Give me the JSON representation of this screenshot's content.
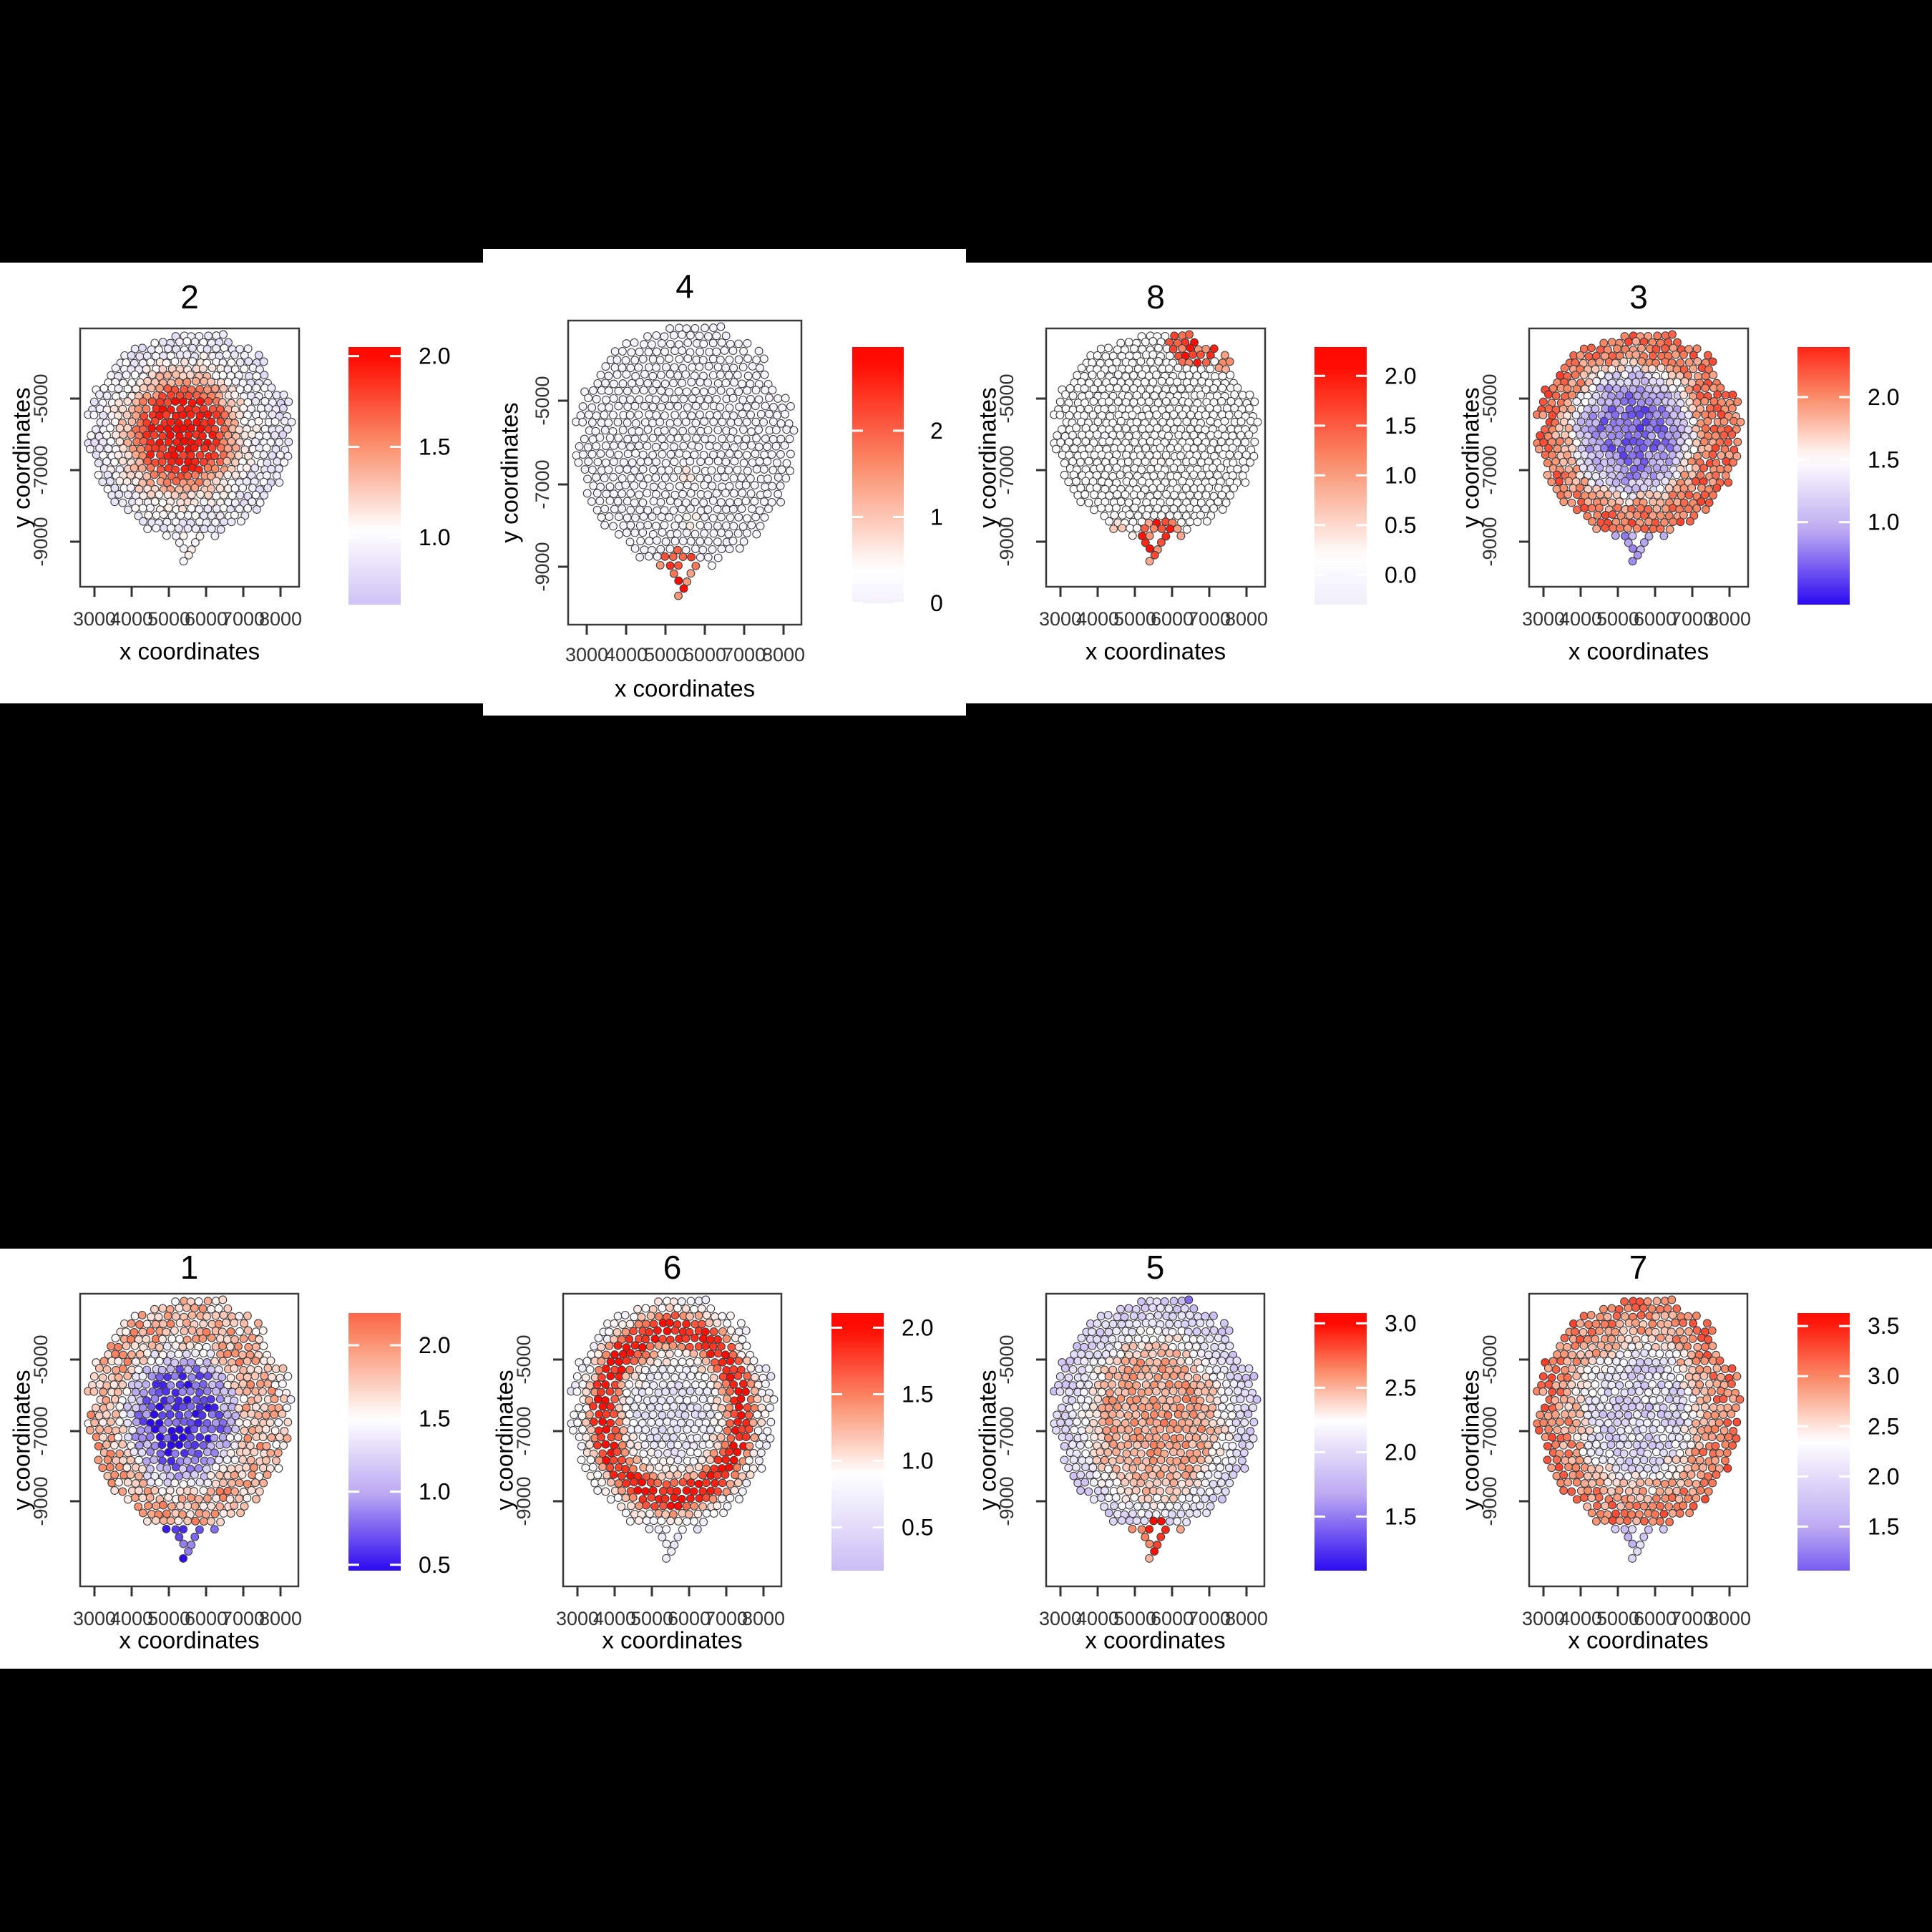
{
  "figure": {
    "background": "#000000",
    "panel_background": "#ffffff",
    "high_color": "#ff0a00",
    "mid_color": "#ffffff",
    "low_color": "#2d0af0",
    "spot_outline": "#3f3f3f",
    "axis_color": "#333333",
    "panels_order": [
      [
        "2",
        "4",
        "8",
        "3"
      ],
      [
        "1",
        "6",
        "5",
        "7"
      ]
    ]
  },
  "chart_data": [
    {
      "type": "scatter",
      "title": "2",
      "xlabel": "x coordinates",
      "ylabel": "y coordinates",
      "x_ticks": [
        3000,
        4000,
        5000,
        6000,
        7000,
        8000
      ],
      "x_tick_labels": [
        "3000",
        "4000",
        "5000",
        "6000",
        "7000",
        "8000"
      ],
      "y_ticks": [
        -5000,
        -7000,
        -9000
      ],
      "y_tick_labels": [
        "-5000",
        "-7000",
        "-9000"
      ],
      "xlim": [
        2600,
        8500
      ],
      "ylim": [
        -10400,
        -3100
      ],
      "grid": false,
      "legend_position": "right",
      "variant": "top",
      "col": 0,
      "seed": 101,
      "legend": {
        "labels": [
          "2.0",
          "1.5",
          "1.0"
        ],
        "values": [
          2.0,
          1.5,
          1.0
        ],
        "domain_top": 2.05,
        "domain_bottom": 0.63,
        "white_point": 1.04,
        "sat_hi": 2.0,
        "sat_lo": -0.13
      },
      "pattern": {
        "center": [
          0.46,
          0.47
        ],
        "profile": [
          [
            0,
            1.95
          ],
          [
            0.33,
            1.9
          ],
          [
            0.52,
            1.35
          ],
          [
            0.72,
            1.0
          ],
          [
            1,
            0.88
          ]
        ],
        "noise": 0.13,
        "tail_value": 1.0,
        "patches": []
      }
    },
    {
      "type": "scatter",
      "title": "4",
      "xlabel": "x coordinates",
      "ylabel": "y coordinates",
      "x_ticks": [
        3000,
        4000,
        5000,
        6000,
        7000,
        8000
      ],
      "x_tick_labels": [
        "3000",
        "4000",
        "5000",
        "6000",
        "7000",
        "8000"
      ],
      "y_ticks": [
        -5000,
        -7000,
        -9000
      ],
      "y_tick_labels": [
        "-5000",
        "-7000",
        "-9000"
      ],
      "xlim": [
        2600,
        8500
      ],
      "ylim": [
        -10400,
        -3100
      ],
      "grid": false,
      "legend_position": "right",
      "variant": "topTall",
      "col": 1,
      "seed": 202,
      "legend": {
        "labels": [
          "2",
          "1",
          "0"
        ],
        "values": [
          2,
          1,
          0
        ],
        "domain_top": 2.97,
        "domain_bottom": 0.0,
        "white_point": 0.4,
        "sat_hi": 2.8,
        "sat_lo": -4.6
      },
      "pattern": {
        "center": [
          0.5,
          0.5
        ],
        "profile": [
          [
            0,
            0.16
          ],
          [
            1,
            0.12
          ]
        ],
        "noise": 0.09,
        "tail_value": 0.3,
        "patches": [
          {
            "cx": 0.48,
            "cy": 0.985,
            "r": 0.1,
            "value": 2.1,
            "spread": 1.5
          },
          {
            "cx": 0.5,
            "cy": 0.6,
            "r": 0.035,
            "value": 0.85,
            "spread": 0.5
          },
          {
            "cx": 0.54,
            "cy": 0.78,
            "r": 0.045,
            "value": 0.5,
            "spread": 0.4
          }
        ]
      }
    },
    {
      "type": "scatter",
      "title": "8",
      "xlabel": "x coordinates",
      "ylabel": "y coordinates",
      "x_ticks": [
        3000,
        4000,
        5000,
        6000,
        7000,
        8000
      ],
      "x_tick_labels": [
        "3000",
        "4000",
        "5000",
        "6000",
        "7000",
        "8000"
      ],
      "y_ticks": [
        -5000,
        -7000,
        -9000
      ],
      "y_tick_labels": [
        "-5000",
        "-7000",
        "-9000"
      ],
      "xlim": [
        2600,
        8500
      ],
      "ylim": [
        -10400,
        -3100
      ],
      "grid": false,
      "legend_position": "right",
      "variant": "top",
      "col": 2,
      "seed": 303,
      "legend": {
        "labels": [
          "2.0",
          "1.5",
          "1.0",
          "0.5",
          "0.0"
        ],
        "values": [
          2.0,
          1.5,
          1.0,
          0.5,
          0.0
        ],
        "domain_top": 2.29,
        "domain_bottom": -0.3,
        "white_point": 0.18,
        "sat_hi": 2.1,
        "sat_lo": -4.6
      },
      "pattern": {
        "center": [
          0.5,
          0.5
        ],
        "profile": [
          [
            0,
            0.14
          ],
          [
            1,
            0.11
          ]
        ],
        "noise": 0.08,
        "tail_value": 0.25,
        "patches": [
          {
            "cx": 0.68,
            "cy": 0.02,
            "r": 0.13,
            "value": 1.5,
            "spread": 1.3
          },
          {
            "cx": 0.84,
            "cy": 0.13,
            "r": 0.05,
            "value": 0.8,
            "spread": 0.7
          },
          {
            "cx": 0.53,
            "cy": 0.98,
            "r": 0.12,
            "value": 1.5,
            "spread": 1.2
          },
          {
            "cx": 0.32,
            "cy": 0.93,
            "r": 0.05,
            "value": 0.55,
            "spread": 0.5
          }
        ]
      }
    },
    {
      "type": "scatter",
      "title": "3",
      "xlabel": "x coordinates",
      "ylabel": "y coordinates",
      "x_ticks": [
        3000,
        4000,
        5000,
        6000,
        7000,
        8000
      ],
      "x_tick_labels": [
        "3000",
        "4000",
        "5000",
        "6000",
        "7000",
        "8000"
      ],
      "y_ticks": [
        -5000,
        -7000,
        -9000
      ],
      "y_tick_labels": [
        "-5000",
        "-7000",
        "-9000"
      ],
      "xlim": [
        2600,
        8500
      ],
      "ylim": [
        -10400,
        -3100
      ],
      "grid": false,
      "legend_position": "right",
      "variant": "top",
      "col": 3,
      "seed": 404,
      "legend": {
        "labels": [
          "2.0",
          "1.5",
          "1.0"
        ],
        "values": [
          2.0,
          1.5,
          1.0
        ],
        "domain_top": 2.4,
        "domain_bottom": 0.34,
        "white_point": 1.5,
        "sat_hi": 2.5,
        "sat_lo": 0.34
      },
      "pattern": {
        "center": [
          0.47,
          0.46
        ],
        "profile": [
          [
            0,
            0.65
          ],
          [
            0.3,
            0.75
          ],
          [
            0.5,
            1.1
          ],
          [
            0.68,
            1.9
          ],
          [
            0.85,
            2.1
          ],
          [
            1,
            2.05
          ]
        ],
        "noise": 0.22,
        "tail_value": 0.95,
        "patches": []
      }
    },
    {
      "type": "scatter",
      "title": "1",
      "xlabel": "x coordinates",
      "ylabel": "y coordinates",
      "x_ticks": [
        3000,
        4000,
        5000,
        6000,
        7000,
        8000
      ],
      "x_tick_labels": [
        "3000",
        "4000",
        "5000",
        "6000",
        "7000",
        "8000"
      ],
      "y_ticks": [
        -5000,
        -7000,
        -9000
      ],
      "y_tick_labels": [
        "-5000",
        "-7000",
        "-9000"
      ],
      "xlim": [
        2600,
        8500
      ],
      "ylim": [
        -10400,
        -3100
      ],
      "grid": false,
      "legend_position": "right",
      "variant": "bottom",
      "col": 0,
      "seed": 505,
      "legend": {
        "labels": [
          "2.0",
          "1.5",
          "1.0",
          "0.5"
        ],
        "values": [
          2.0,
          1.5,
          1.0,
          0.5
        ],
        "domain_top": 2.22,
        "domain_bottom": 0.46,
        "white_point": 1.5,
        "sat_hi": 2.6,
        "sat_lo": 0.46
      },
      "pattern": {
        "center": [
          0.46,
          0.49
        ],
        "profile": [
          [
            0,
            0.55
          ],
          [
            0.3,
            0.62
          ],
          [
            0.5,
            1.2
          ],
          [
            0.68,
            1.85
          ],
          [
            0.85,
            1.85
          ],
          [
            1,
            1.65
          ]
        ],
        "noise": 0.28,
        "tail_value": 0.68,
        "patches": []
      }
    },
    {
      "type": "scatter",
      "title": "6",
      "xlabel": "x coordinates",
      "ylabel": "y coordinates",
      "x_ticks": [
        3000,
        4000,
        5000,
        6000,
        7000,
        8000
      ],
      "x_tick_labels": [
        "3000",
        "4000",
        "5000",
        "6000",
        "7000",
        "8000"
      ],
      "y_ticks": [
        -5000,
        -7000,
        -9000
      ],
      "y_tick_labels": [
        "-5000",
        "-7000",
        "-9000"
      ],
      "xlim": [
        2600,
        8500
      ],
      "ylim": [
        -10400,
        -3100
      ],
      "grid": false,
      "legend_position": "right",
      "variant": "bottom",
      "col": 1,
      "seed": 606,
      "legend": {
        "labels": [
          "2.0",
          "1.5",
          "1.0",
          "0.5"
        ],
        "values": [
          2.0,
          1.5,
          1.0,
          0.5
        ],
        "domain_top": 2.11,
        "domain_bottom": 0.175,
        "white_point": 0.9,
        "sat_hi": 2.0,
        "sat_lo": -1.0
      },
      "pattern": {
        "center": [
          0.5,
          0.47
        ],
        "profile": [
          [
            0,
            0.62
          ],
          [
            0.35,
            0.68
          ],
          [
            0.5,
            1.1
          ],
          [
            0.62,
            1.9
          ],
          [
            0.75,
            1.9
          ],
          [
            0.85,
            1.0
          ],
          [
            1,
            0.72
          ]
        ],
        "noise": 0.18,
        "tail_value": 0.7,
        "patches": []
      }
    },
    {
      "type": "scatter",
      "title": "5",
      "xlabel": "x coordinates",
      "ylabel": "y coordinates",
      "x_ticks": [
        3000,
        4000,
        5000,
        6000,
        7000,
        8000
      ],
      "x_tick_labels": [
        "3000",
        "4000",
        "5000",
        "6000",
        "7000",
        "8000"
      ],
      "y_ticks": [
        -5000,
        -7000,
        -9000
      ],
      "y_tick_labels": [
        "-5000",
        "-7000",
        "-9000"
      ],
      "xlim": [
        2600,
        8500
      ],
      "ylim": [
        -10400,
        -3100
      ],
      "grid": false,
      "legend_position": "right",
      "variant": "bottom",
      "col": 2,
      "seed": 707,
      "legend": {
        "labels": [
          "3.0",
          "2.5",
          "2.0",
          "1.5"
        ],
        "values": [
          3.0,
          2.5,
          2.0,
          1.5
        ],
        "domain_top": 3.08,
        "domain_bottom": 1.08,
        "white_point": 2.25,
        "sat_hi": 3.0,
        "sat_lo": 1.08
      },
      "pattern": {
        "center": [
          0.5,
          0.5
        ],
        "profile": [
          [
            0,
            2.6
          ],
          [
            0.5,
            2.52
          ],
          [
            0.7,
            2.25
          ],
          [
            0.85,
            2.0
          ],
          [
            1,
            1.92
          ]
        ],
        "noise": 0.13,
        "tail_value": 2.55,
        "patches": [
          {
            "cx": 0.52,
            "cy": 0.99,
            "r": 0.08,
            "value": 2.85,
            "spread": 0.5
          },
          {
            "cx": 0.66,
            "cy": 0.0,
            "r": 0.025,
            "value": 1.45,
            "spread": 0.1
          },
          {
            "cx": 0.71,
            "cy": 0.94,
            "r": 0.028,
            "value": 1.5,
            "spread": 0.15
          }
        ]
      }
    },
    {
      "type": "scatter",
      "title": "7",
      "xlabel": "x coordinates",
      "ylabel": "y coordinates",
      "x_ticks": [
        3000,
        4000,
        5000,
        6000,
        7000,
        8000
      ],
      "x_tick_labels": [
        "3000",
        "4000",
        "5000",
        "6000",
        "7000",
        "8000"
      ],
      "y_ticks": [
        -5000,
        -7000,
        -9000
      ],
      "y_tick_labels": [
        "-5000",
        "-7000",
        "-9000"
      ],
      "xlim": [
        2600,
        8500
      ],
      "ylim": [
        -10400,
        -3100
      ],
      "grid": false,
      "legend_position": "right",
      "variant": "bottom",
      "col": 3,
      "seed": 808,
      "legend": {
        "labels": [
          "3.5",
          "3.0",
          "2.5",
          "2.0",
          "1.5"
        ],
        "values": [
          3.5,
          3.0,
          2.5,
          2.0,
          1.5
        ],
        "domain_top": 3.63,
        "domain_bottom": 1.06,
        "white_point": 2.35,
        "sat_hi": 3.6,
        "sat_lo": 0.6
      },
      "pattern": {
        "center": [
          0.5,
          0.47
        ],
        "profile": [
          [
            0,
            1.95
          ],
          [
            0.4,
            2.0
          ],
          [
            0.58,
            2.55
          ],
          [
            0.75,
            2.95
          ],
          [
            1,
            3.1
          ]
        ],
        "noise": 0.3,
        "tail_value": 1.8,
        "patches": []
      }
    }
  ]
}
